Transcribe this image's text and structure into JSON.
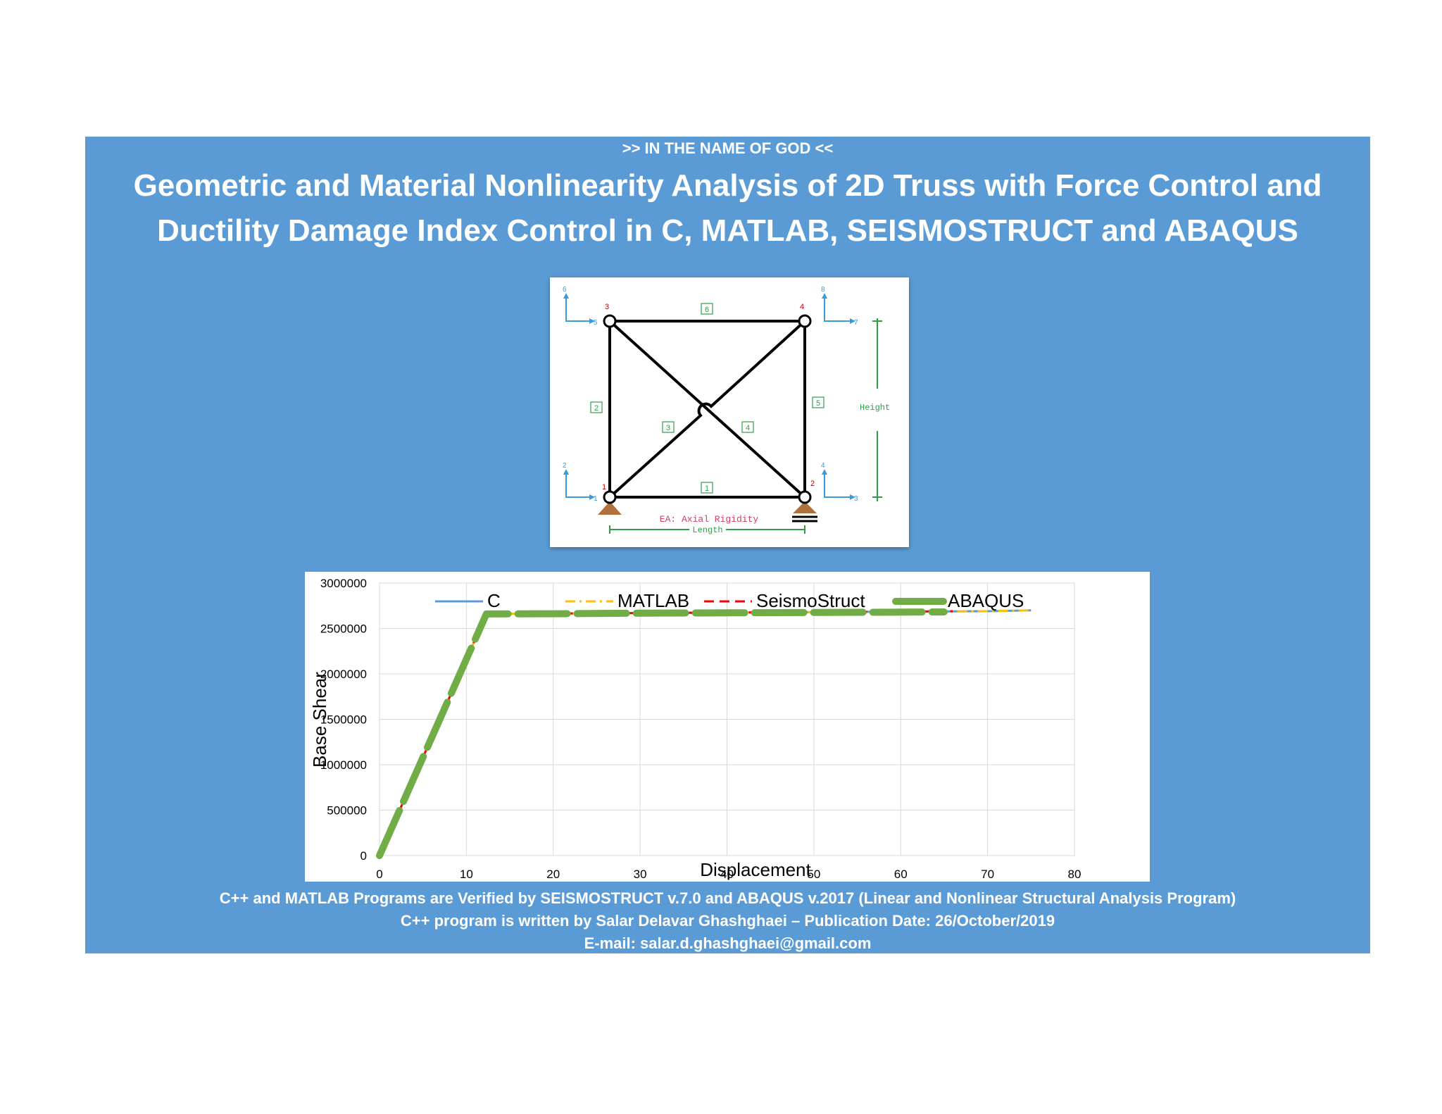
{
  "header": {
    "top_line": ">> IN THE NAME OF GOD <<",
    "title_line1": "Geometric and Material Nonlinearity Analysis of 2D Truss with Force Control and",
    "title_line2": "Ductility Damage Index Control in C, MATLAB, SEISMOSTRUCT and ABAQUS"
  },
  "diagram": {
    "node_labels": [
      "1",
      "2",
      "3",
      "4"
    ],
    "element_labels": [
      "1",
      "2",
      "3",
      "4",
      "5",
      "6"
    ],
    "dof_labels": [
      "1",
      "2",
      "3",
      "4",
      "5",
      "6",
      "7",
      "8"
    ],
    "height_label": "Height",
    "length_label": "Length",
    "ea_label": "EA: Axial Rigidity"
  },
  "chart_data": {
    "type": "line",
    "xlabel": "Displacement",
    "ylabel": "Base Shear",
    "xlim": [
      0,
      80
    ],
    "ylim": [
      0,
      3000000
    ],
    "x_ticks": [
      "0",
      "10",
      "20",
      "30",
      "40",
      "50",
      "60",
      "70",
      "80"
    ],
    "y_ticks": [
      "0",
      "500000",
      "1000000",
      "1500000",
      "2000000",
      "2500000",
      "3000000"
    ],
    "grid": true,
    "legend_position": "top",
    "series": [
      {
        "name": "C",
        "color": "#5b9bd5",
        "style": "solid",
        "x": [
          0,
          12.3,
          20,
          30,
          40,
          50,
          60,
          70,
          75
        ],
        "y": [
          0,
          2660000,
          2665000,
          2670000,
          2675000,
          2680000,
          2685000,
          2690000,
          2700000
        ]
      },
      {
        "name": "MATLAB",
        "color": "#ffc000",
        "style": "dashdot",
        "x": [
          0,
          12.3,
          20,
          30,
          40,
          50,
          60,
          70,
          75
        ],
        "y": [
          0,
          2660000,
          2665000,
          2670000,
          2675000,
          2680000,
          2685000,
          2690000,
          2700000
        ]
      },
      {
        "name": "SeismoStruct",
        "color": "#ff0000",
        "style": "dash",
        "x": [
          0,
          12.3,
          20,
          30,
          40,
          50,
          60,
          66
        ],
        "y": [
          0,
          2660000,
          2665000,
          2670000,
          2675000,
          2680000,
          2685000,
          2690000
        ]
      },
      {
        "name": "ABAQUS",
        "color": "#70ad47",
        "style": "thick-dash",
        "x": [
          0,
          12.3,
          20,
          30,
          40,
          50,
          60,
          65
        ],
        "y": [
          0,
          2660000,
          2662000,
          2668000,
          2672000,
          2676000,
          2680000,
          2682000
        ]
      }
    ]
  },
  "footer": {
    "line1": "C++ and MATLAB Programs are Verified by SEISMOSTRUCT v.7.0 and ABAQUS v.2017  (Linear and Nonlinear Structural Analysis Program)",
    "line2": "C++ program is written by Salar Delavar Ghashghaei – Publication Date: 26/October/2019",
    "line3": "E-mail: salar.d.ghashghaei@gmail.com"
  }
}
